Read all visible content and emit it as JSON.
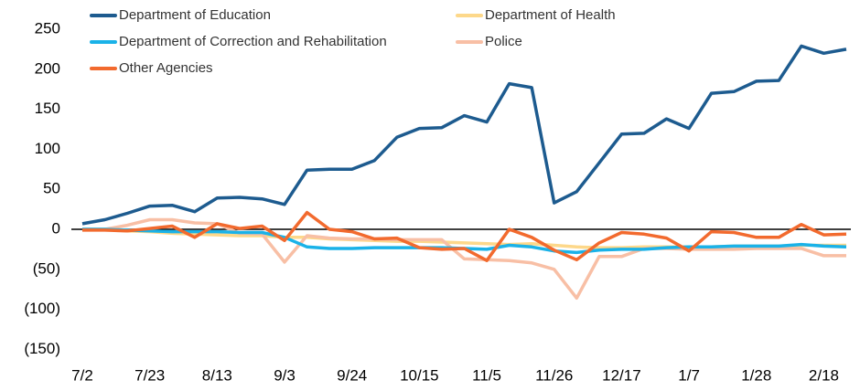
{
  "chart_data": {
    "type": "line",
    "categories": [
      "7/2",
      null,
      null,
      "7/23",
      null,
      null,
      "8/13",
      null,
      null,
      "9/3",
      null,
      null,
      "9/24",
      null,
      null,
      "10/15",
      null,
      null,
      "11/5",
      null,
      null,
      "11/26",
      null,
      null,
      "12/17",
      null,
      null,
      "1/7",
      null,
      null,
      "1/28",
      null,
      null,
      "2/18",
      null
    ],
    "series": [
      {
        "name": "Department of Education",
        "color": "#1d5b8f",
        "values": [
          7,
          12,
          20,
          29,
          30,
          22,
          39,
          40,
          38,
          31,
          74,
          75,
          75,
          86,
          115,
          126,
          127,
          142,
          134,
          182,
          177,
          33,
          47,
          83,
          119,
          120,
          138,
          126,
          170,
          172,
          185,
          186,
          229,
          220,
          225
        ]
      },
      {
        "name": "Department of Health",
        "color": "#fdd88a",
        "values": [
          0,
          0,
          -2,
          -3,
          -5,
          -6,
          -7,
          -8,
          -8,
          -10,
          -10,
          -12,
          -13,
          -14,
          -15,
          -15,
          -16,
          -17,
          -18,
          -19,
          -18,
          -20,
          -22,
          -23,
          -23,
          -22,
          -22,
          -22,
          -22,
          -21,
          -21,
          -21,
          -20,
          -20,
          -20
        ]
      },
      {
        "name": "Department of Correction and Rehabilitation",
        "color": "#1ab2e8",
        "values": [
          0,
          0,
          -1,
          -2,
          -3,
          -3,
          -3,
          -4,
          -4,
          -10,
          -22,
          -24,
          -24,
          -23,
          -23,
          -23,
          -23,
          -24,
          -25,
          -20,
          -22,
          -27,
          -29,
          -26,
          -25,
          -25,
          -23,
          -22,
          -22,
          -21,
          -21,
          -21,
          -19,
          -21,
          -22
        ]
      },
      {
        "name": "Police",
        "color": "#f8bfa5",
        "values": [
          0,
          0,
          5,
          12,
          12,
          8,
          7,
          -5,
          -6,
          -41,
          -8,
          -11,
          -12,
          -12,
          -13,
          -13,
          -13,
          -37,
          -38,
          -39,
          -42,
          -50,
          -86,
          -34,
          -34,
          -24,
          -24,
          -25,
          -25,
          -25,
          -24,
          -24,
          -24,
          -33,
          -33
        ]
      },
      {
        "name": "Other Agencies",
        "color": "#f26a2e",
        "values": [
          -1,
          -1,
          -2,
          1,
          4,
          -10,
          7,
          1,
          4,
          -14,
          21,
          0,
          -3,
          -12,
          -11,
          -23,
          -25,
          -24,
          -39,
          0,
          -10,
          -26,
          -38,
          -17,
          -4,
          -6,
          -11,
          -27,
          -3,
          -4,
          -10,
          -10,
          6,
          -7,
          -6
        ]
      }
    ],
    "ylim": [
      -150,
      250
    ],
    "yticks": [
      250,
      200,
      150,
      100,
      50,
      0,
      {
        "value": -50,
        "label": "(50)"
      },
      {
        "value": -100,
        "label": "(100)"
      },
      {
        "value": -150,
        "label": "(150)"
      }
    ],
    "grid": false
  }
}
